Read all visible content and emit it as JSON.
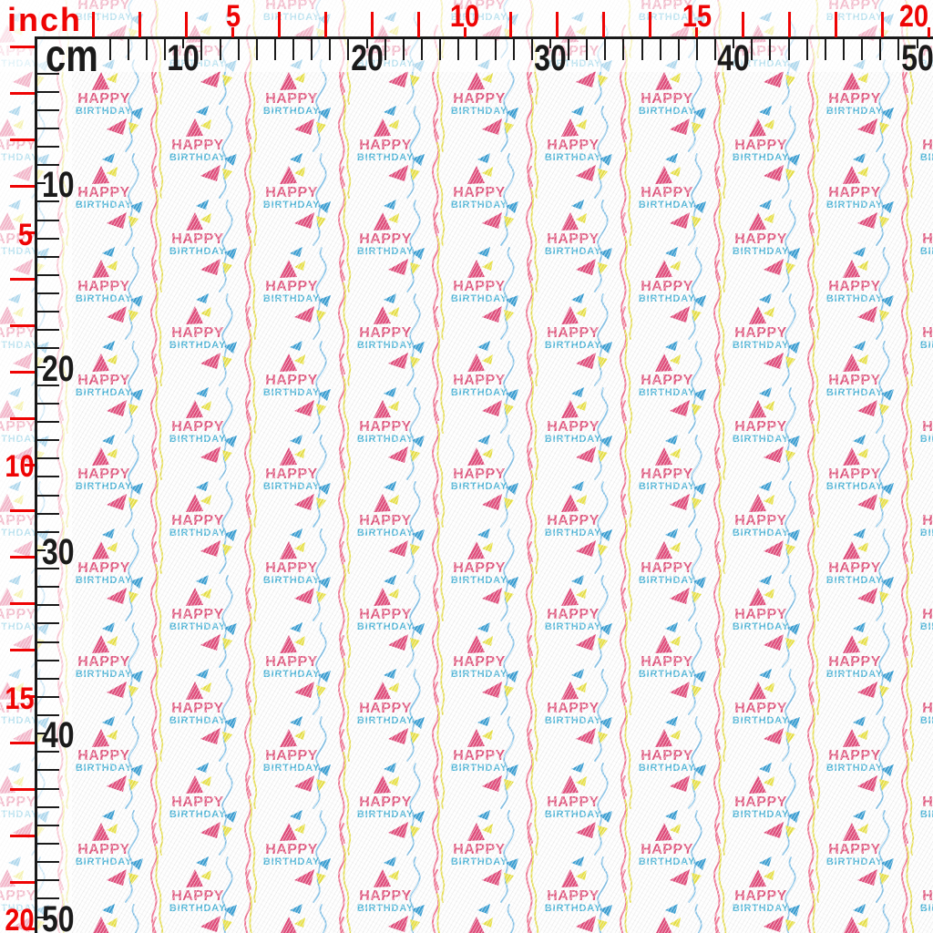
{
  "rulers": {
    "inch_unit": "inch",
    "cm_unit": "cm",
    "inch_color": "#ee0404",
    "cm_color": "#1a1a1a",
    "top": {
      "inch_labels": [
        "5",
        "10",
        "15",
        "20"
      ],
      "cm_labels": [
        "10",
        "20",
        "30",
        "40",
        "50"
      ]
    },
    "left": {
      "inch_labels": [
        "5",
        "10",
        "15",
        "20"
      ],
      "cm_labels": [
        "10",
        "20",
        "30",
        "40",
        "50"
      ]
    }
  },
  "fabric": {
    "base_color": "#ffffff",
    "motif": {
      "line1": "HAPPY",
      "line2": "BIRTHDAY",
      "line1_color": "#df4a75",
      "line2_color": "#41b0d6",
      "triangle_pink": "#e04274",
      "triangle_blue": "#2f9ad2",
      "triangle_yellow": "#e9e23e",
      "streamer_pink": "#f0718f",
      "streamer_blue": "#82c2e8",
      "streamer_yellow": "#e7de4d"
    }
  }
}
